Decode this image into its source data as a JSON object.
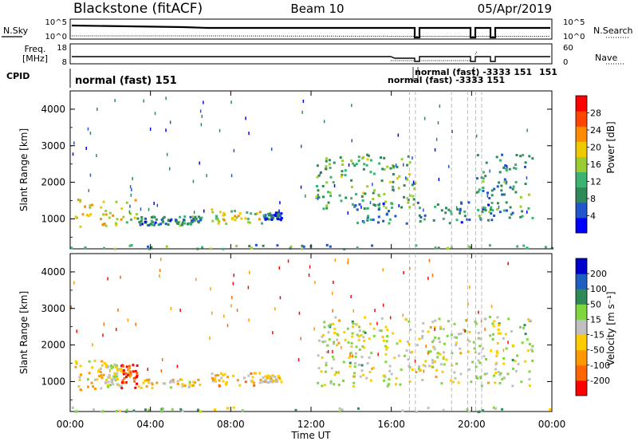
{
  "header": {
    "station": "Blackstone (fitACF)",
    "beam": "Beam 10",
    "date": "05/Apr/2019"
  },
  "noise_panel": {
    "left_label": "N.Sky",
    "right_label": "N.Search",
    "left_ticks": [
      "10^5",
      "10^0"
    ],
    "right_ticks": [
      "10^5",
      "10^0"
    ]
  },
  "freq_panel": {
    "label_line1": "Freq.",
    "label_line2": "[MHz]",
    "right_label": "Nave",
    "left_ticks": [
      "18",
      "8"
    ],
    "right_ticks": [
      "60",
      "0"
    ]
  },
  "cpid": {
    "label": "CPID",
    "main_text": "normal (fast) 151",
    "cluster_text": "normal (fast) -3333 151",
    "right_text": "151"
  },
  "power_panel": {
    "ylabel": "Slant Range [km]",
    "yticks": [
      "4000",
      "3000",
      "2000",
      "1000"
    ],
    "colorbar_label": "Power [dB]",
    "colorbar_ticks": [
      "28",
      "24",
      "20",
      "16",
      "12",
      "8",
      "4"
    ]
  },
  "velocity_panel": {
    "ylabel": "Slant Range [km]",
    "yticks": [
      "4000",
      "3000",
      "2000",
      "1000"
    ],
    "colorbar_label": "Velocity [m s⁻¹]",
    "colorbar_ticks": [
      "200",
      "100",
      "50",
      "15",
      "-15",
      "-50",
      "-100",
      "-200"
    ]
  },
  "xaxis": {
    "label": "Time UT",
    "ticks": [
      "00:00",
      "04:00",
      "08:00",
      "12:00",
      "16:00",
      "20:00",
      "00:00"
    ]
  },
  "colors": {
    "power_scale": [
      "#0000ff",
      "#2255cc",
      "#2e8b57",
      "#3cb371",
      "#9acd32",
      "#f0c800",
      "#ff8c00",
      "#ff4500",
      "#ff0000"
    ],
    "velocity_scale": [
      "#ff0000",
      "#ff6600",
      "#ff9900",
      "#ffcc00",
      "#c0c0c0",
      "#7fd63f",
      "#2e8b57",
      "#1f5fbf",
      "#0000cc"
    ]
  },
  "chart_data": [
    {
      "type": "heatmap",
      "title": "Power",
      "xlabel": "Time UT",
      "ylabel": "Slant Range [km]",
      "xlim": [
        0,
        24
      ],
      "ylim": [
        180,
        4500
      ],
      "zlim": [
        0,
        30
      ],
      "regions": [
        {
          "t0": 0.2,
          "t1": 3.3,
          "r0": 800,
          "r1": 1600,
          "value": 18
        },
        {
          "t0": 3.3,
          "t1": 5.0,
          "r0": 850,
          "r1": 1100,
          "value": 8
        },
        {
          "t0": 5.2,
          "t1": 6.5,
          "r0": 850,
          "r1": 1100,
          "value": 10
        },
        {
          "t0": 7.0,
          "t1": 9.5,
          "r0": 900,
          "r1": 1300,
          "value": 16
        },
        {
          "t0": 9.5,
          "t1": 10.5,
          "r0": 1000,
          "r1": 1200,
          "value": 6
        },
        {
          "t0": 12.2,
          "t1": 17.2,
          "r0": 1300,
          "r1": 2800,
          "value": 12
        },
        {
          "t0": 14.0,
          "t1": 21.0,
          "r0": 900,
          "r1": 1500,
          "value": 8
        },
        {
          "t0": 20.2,
          "t1": 23.0,
          "r0": 1000,
          "r1": 2800,
          "value": 9
        },
        {
          "t0": 0.0,
          "t1": 24.0,
          "r0": 200,
          "r1": 320,
          "value": 10
        }
      ]
    },
    {
      "type": "heatmap",
      "title": "Velocity",
      "xlabel": "Time UT",
      "ylabel": "Slant Range [km]",
      "xlim": [
        0,
        24
      ],
      "ylim": [
        180,
        4500
      ],
      "zlim": [
        -200,
        200
      ],
      "regions": [
        {
          "t0": 0.2,
          "t1": 1.8,
          "r0": 800,
          "r1": 1600,
          "value": -40
        },
        {
          "t0": 1.8,
          "t1": 2.5,
          "r0": 800,
          "r1": 1500,
          "value": -5
        },
        {
          "t0": 2.5,
          "t1": 3.3,
          "r0": 800,
          "r1": 1500,
          "value": -150
        },
        {
          "t0": 3.3,
          "t1": 6.5,
          "r0": 850,
          "r1": 1100,
          "value": -40
        },
        {
          "t0": 7.0,
          "t1": 9.5,
          "r0": 900,
          "r1": 1300,
          "value": -60
        },
        {
          "t0": 9.5,
          "t1": 10.5,
          "r0": 1000,
          "r1": 1200,
          "value": -30
        },
        {
          "t0": 12.2,
          "t1": 23.0,
          "r0": 900,
          "r1": 2800,
          "value": 0
        },
        {
          "t0": 0.0,
          "t1": 24.0,
          "r0": 200,
          "r1": 320,
          "value": 30
        }
      ]
    }
  ]
}
